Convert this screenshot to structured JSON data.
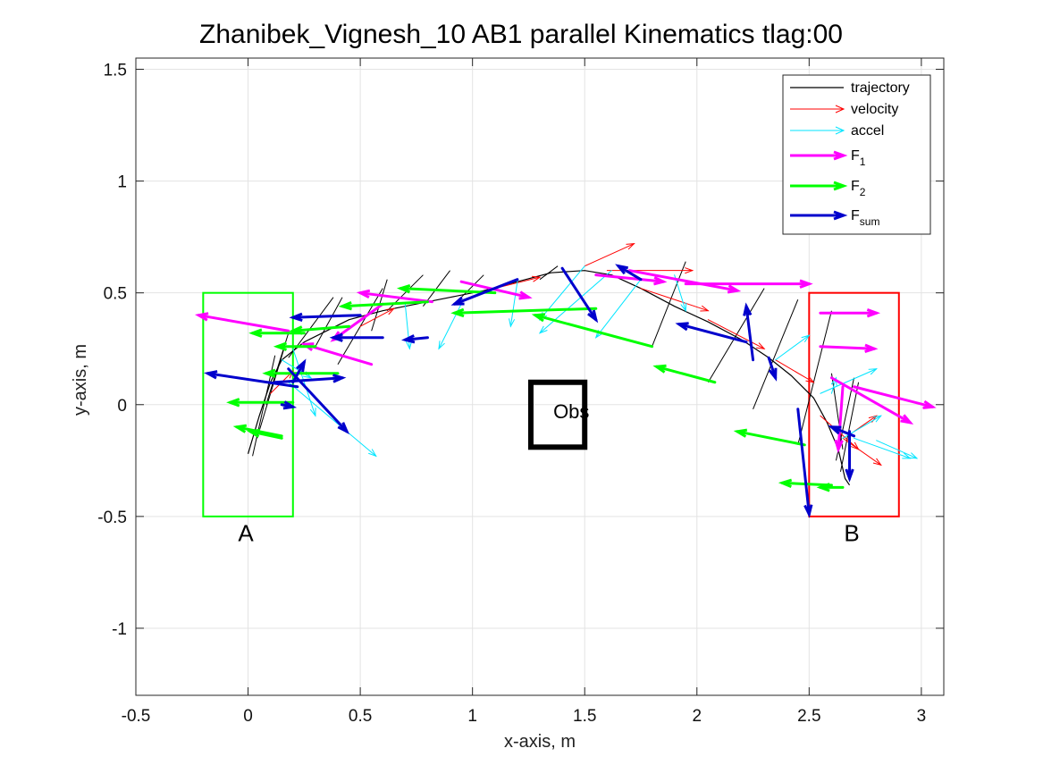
{
  "chart_data": {
    "type": "quiver",
    "title": "Zhanibek_Vignesh_10    AB1    parallel    Kinematics tlag:00",
    "xlabel": "x-axis, m",
    "ylabel": "y-axis, m",
    "xlim": [
      -0.5,
      3.1
    ],
    "ylim": [
      -1.3,
      1.55
    ],
    "xticks": [
      -0.5,
      0,
      0.5,
      1,
      1.5,
      2,
      2.5,
      3
    ],
    "yticks": [
      1.5,
      1,
      0.5,
      0,
      -0.5,
      -1
    ],
    "xticklabels": [
      "-0.5",
      "0",
      "0.5",
      "1",
      "1.5",
      "2",
      "2.5",
      "3"
    ],
    "yticklabels": [
      "1.5",
      "1",
      "0.5",
      "0",
      "-0.5",
      "-1"
    ],
    "grid": true,
    "legend_position": "top-right",
    "legend": [
      {
        "key": "trajectory",
        "label": "trajectory",
        "sub": "",
        "color": "#000000"
      },
      {
        "key": "velocity",
        "label": "velocity",
        "sub": "",
        "color": "#ff0000"
      },
      {
        "key": "accel",
        "label": "accel",
        "sub": "",
        "color": "#00e5ff"
      },
      {
        "key": "F1",
        "label": "F",
        "sub": "1",
        "color": "#ff00ff"
      },
      {
        "key": "F2",
        "label": "F",
        "sub": "2",
        "color": "#00ff00"
      },
      {
        "key": "Fsum",
        "label": "F",
        "sub": "sum",
        "color": "#0000cc"
      }
    ],
    "regions": [
      {
        "label": "A",
        "x0": -0.2,
        "x1": 0.2,
        "y0": -0.5,
        "y1": 0.5,
        "color": "#00ff00",
        "label_x": -0.01,
        "label_y": -0.61
      },
      {
        "label": "B",
        "x0": 2.5,
        "x1": 2.9,
        "y0": -0.5,
        "y1": 0.5,
        "color": "#ff0000",
        "label_x": 2.69,
        "label_y": -0.61
      }
    ],
    "obstacle": {
      "label": "Obs",
      "x0": 1.26,
      "x1": 1.5,
      "y0": -0.19,
      "y2": 0.1,
      "y1": 0.1,
      "color": "#000000",
      "label_x": 1.36,
      "label_y": -0.06
    },
    "series": [
      {
        "name": "trajectory",
        "type": "line",
        "points": [
          [
            0.0,
            -0.22
          ],
          [
            0.05,
            -0.05
          ],
          [
            0.1,
            0.1
          ],
          [
            0.15,
            0.2
          ],
          [
            0.25,
            0.28
          ],
          [
            0.35,
            0.33
          ],
          [
            0.45,
            0.38
          ],
          [
            0.6,
            0.42
          ],
          [
            0.75,
            0.45
          ],
          [
            0.9,
            0.48
          ],
          [
            1.05,
            0.51
          ],
          [
            1.2,
            0.55
          ],
          [
            1.35,
            0.59
          ],
          [
            1.5,
            0.6
          ],
          [
            1.62,
            0.58
          ],
          [
            1.75,
            0.52
          ],
          [
            1.9,
            0.44
          ],
          [
            2.05,
            0.37
          ],
          [
            2.2,
            0.29
          ],
          [
            2.32,
            0.21
          ],
          [
            2.42,
            0.13
          ],
          [
            2.52,
            0.03
          ],
          [
            2.58,
            -0.08
          ],
          [
            2.63,
            -0.2
          ],
          [
            2.66,
            -0.33
          ],
          [
            2.68,
            -0.36
          ]
        ]
      },
      {
        "name": "trajectory",
        "type": "segments",
        "segments": [
          [
            [
              0.02,
              -0.23
            ],
            [
              0.12,
              0.22
            ]
          ],
          [
            [
              0.04,
              -0.15
            ],
            [
              0.16,
              0.25
            ]
          ],
          [
            [
              0.08,
              0.0
            ],
            [
              0.18,
              0.32
            ]
          ],
          [
            [
              0.18,
              0.21
            ],
            [
              0.38,
              0.48
            ]
          ],
          [
            [
              0.3,
              0.26
            ],
            [
              0.42,
              0.48
            ]
          ],
          [
            [
              0.4,
              0.18
            ],
            [
              0.6,
              0.52
            ]
          ],
          [
            [
              0.55,
              0.33
            ],
            [
              0.62,
              0.56
            ]
          ],
          [
            [
              0.62,
              0.42
            ],
            [
              0.78,
              0.58
            ]
          ],
          [
            [
              0.78,
              0.44
            ],
            [
              0.9,
              0.6
            ]
          ],
          [
            [
              0.95,
              0.48
            ],
            [
              1.05,
              0.58
            ]
          ],
          [
            [
              1.3,
              0.56
            ],
            [
              1.38,
              0.62
            ]
          ],
          [
            [
              1.8,
              0.26
            ],
            [
              1.95,
              0.64
            ]
          ],
          [
            [
              2.05,
              0.1
            ],
            [
              2.3,
              0.52
            ]
          ],
          [
            [
              2.25,
              -0.02
            ],
            [
              2.45,
              0.47
            ]
          ],
          [
            [
              2.45,
              -0.18
            ],
            [
              2.6,
              0.42
            ]
          ],
          [
            [
              2.6,
              0.14
            ],
            [
              2.65,
              -0.2
            ]
          ],
          [
            [
              2.62,
              -0.25
            ],
            [
              2.7,
              0.12
            ]
          ],
          [
            [
              2.64,
              -0.3
            ],
            [
              2.72,
              0.1
            ]
          ]
        ]
      },
      {
        "name": "velocity",
        "type": "arrows",
        "vectors": [
          [
            [
              0.1,
              0.05
            ],
            [
              0.2,
              0.15
            ]
          ],
          [
            [
              0.5,
              0.35
            ],
            [
              0.65,
              0.43
            ]
          ],
          [
            [
              1.1,
              0.52
            ],
            [
              1.3,
              0.57
            ]
          ],
          [
            [
              1.5,
              0.62
            ],
            [
              1.72,
              0.72
            ]
          ],
          [
            [
              1.6,
              0.6
            ],
            [
              1.98,
              0.6
            ]
          ],
          [
            [
              1.75,
              0.52
            ],
            [
              2.05,
              0.42
            ]
          ],
          [
            [
              2.05,
              0.38
            ],
            [
              2.3,
              0.25
            ]
          ],
          [
            [
              2.35,
              0.2
            ],
            [
              2.52,
              0.1
            ]
          ],
          [
            [
              2.55,
              -0.05
            ],
            [
              2.72,
              -0.2
            ]
          ],
          [
            [
              2.65,
              -0.15
            ],
            [
              2.82,
              -0.27
            ]
          ],
          [
            [
              2.7,
              -0.12
            ],
            [
              2.8,
              -0.05
            ]
          ]
        ]
      },
      {
        "name": "accel",
        "type": "arrows",
        "vectors": [
          [
            [
              0.15,
              0.2
            ],
            [
              0.28,
              0.12
            ]
          ],
          [
            [
              0.2,
              0.25
            ],
            [
              0.3,
              -0.05
            ]
          ],
          [
            [
              0.18,
              0.1
            ],
            [
              0.57,
              -0.23
            ]
          ],
          [
            [
              0.7,
              0.45
            ],
            [
              0.72,
              0.25
            ]
          ],
          [
            [
              0.95,
              0.45
            ],
            [
              0.85,
              0.25
            ]
          ],
          [
            [
              1.2,
              0.55
            ],
            [
              1.17,
              0.35
            ]
          ],
          [
            [
              1.5,
              0.62
            ],
            [
              1.3,
              0.38
            ]
          ],
          [
            [
              1.62,
              0.6
            ],
            [
              1.3,
              0.32
            ]
          ],
          [
            [
              1.75,
              0.56
            ],
            [
              1.55,
              0.3
            ]
          ],
          [
            [
              1.9,
              0.58
            ],
            [
              1.95,
              0.42
            ]
          ],
          [
            [
              2.35,
              0.2
            ],
            [
              2.5,
              0.31
            ]
          ],
          [
            [
              2.55,
              0.05
            ],
            [
              2.8,
              0.16
            ]
          ],
          [
            [
              2.6,
              0.05
            ],
            [
              2.62,
              0.12
            ]
          ],
          [
            [
              2.7,
              -0.15
            ],
            [
              2.95,
              -0.24
            ]
          ],
          [
            [
              2.65,
              -0.15
            ],
            [
              2.82,
              -0.05
            ]
          ],
          [
            [
              2.8,
              -0.16
            ],
            [
              2.98,
              -0.24
            ]
          ]
        ]
      },
      {
        "name": "F1",
        "type": "arrows",
        "vectors": [
          [
            [
              0.18,
              0.33
            ],
            [
              -0.22,
              0.4
            ]
          ],
          [
            [
              0.6,
              0.45
            ],
            [
              0.38,
              0.29
            ]
          ],
          [
            [
              0.55,
              0.18
            ],
            [
              0.25,
              0.27
            ]
          ],
          [
            [
              0.82,
              0.46
            ],
            [
              0.5,
              0.5
            ]
          ],
          [
            [
              0.95,
              0.55
            ],
            [
              1.25,
              0.48
            ]
          ],
          [
            [
              1.55,
              0.58
            ],
            [
              1.85,
              0.55
            ]
          ],
          [
            [
              1.7,
              0.6
            ],
            [
              2.18,
              0.51
            ]
          ],
          [
            [
              1.95,
              0.54
            ],
            [
              2.5,
              0.54
            ]
          ],
          [
            [
              2.55,
              0.41
            ],
            [
              2.8,
              0.41
            ]
          ],
          [
            [
              2.55,
              0.26
            ],
            [
              2.79,
              0.25
            ]
          ],
          [
            [
              2.6,
              0.12
            ],
            [
              2.95,
              -0.08
            ]
          ],
          [
            [
              2.7,
              0.08
            ],
            [
              3.05,
              -0.01
            ]
          ],
          [
            [
              2.65,
              0.08
            ],
            [
              2.63,
              -0.2
            ]
          ]
        ]
      },
      {
        "name": "F2",
        "type": "arrows",
        "vectors": [
          [
            [
              0.4,
              0.14
            ],
            [
              0.08,
              0.14
            ]
          ],
          [
            [
              0.3,
              0.26
            ],
            [
              0.13,
              0.26
            ]
          ],
          [
            [
              0.25,
              0.32
            ],
            [
              0.02,
              0.32
            ]
          ],
          [
            [
              0.2,
              0.01
            ],
            [
              -0.08,
              0.01
            ]
          ],
          [
            [
              0.15,
              -0.14
            ],
            [
              -0.05,
              -0.1
            ]
          ],
          [
            [
              0.45,
              0.35
            ],
            [
              0.2,
              0.33
            ]
          ],
          [
            [
              0.8,
              0.46
            ],
            [
              0.42,
              0.44
            ]
          ],
          [
            [
              1.1,
              0.5
            ],
            [
              0.68,
              0.52
            ]
          ],
          [
            [
              1.55,
              0.43
            ],
            [
              0.92,
              0.41
            ]
          ],
          [
            [
              1.8,
              0.26
            ],
            [
              1.28,
              0.4
            ]
          ],
          [
            [
              2.08,
              0.1
            ],
            [
              1.82,
              0.17
            ]
          ],
          [
            [
              2.48,
              -0.18
            ],
            [
              2.18,
              -0.12
            ]
          ],
          [
            [
              2.6,
              -0.36
            ],
            [
              2.38,
              -0.35
            ]
          ],
          [
            [
              2.65,
              -0.37
            ],
            [
              2.55,
              -0.37
            ]
          ],
          [
            [
              0.15,
              -0.15
            ],
            [
              0.01,
              -0.12
            ]
          ]
        ]
      },
      {
        "name": "Fsum",
        "type": "arrows",
        "vectors": [
          [
            [
              0.5,
              0.4
            ],
            [
              0.2,
              0.39
            ]
          ],
          [
            [
              0.6,
              0.3
            ],
            [
              0.38,
              0.3
            ]
          ],
          [
            [
              0.12,
              0.1
            ],
            [
              0.42,
              0.12
            ]
          ],
          [
            [
              0.22,
              0.08
            ],
            [
              -0.18,
              0.14
            ]
          ],
          [
            [
              0.18,
              0.16
            ],
            [
              0.44,
              -0.12
            ]
          ],
          [
            [
              0.15,
              0.0
            ],
            [
              0.2,
              -0.01
            ]
          ],
          [
            [
              0.2,
              0.1
            ],
            [
              0.25,
              0.19
            ]
          ],
          [
            [
              0.8,
              0.3
            ],
            [
              0.7,
              0.29
            ]
          ],
          [
            [
              1.2,
              0.56
            ],
            [
              0.92,
              0.45
            ]
          ],
          [
            [
              1.4,
              0.61
            ],
            [
              1.55,
              0.38
            ]
          ],
          [
            [
              1.75,
              0.56
            ],
            [
              1.65,
              0.62
            ]
          ],
          [
            [
              2.22,
              0.28
            ],
            [
              1.92,
              0.36
            ]
          ],
          [
            [
              2.25,
              0.2
            ],
            [
              2.22,
              0.44
            ]
          ],
          [
            [
              2.32,
              0.21
            ],
            [
              2.35,
              0.12
            ]
          ],
          [
            [
              2.45,
              -0.02
            ],
            [
              2.5,
              -0.49
            ]
          ],
          [
            [
              2.68,
              -0.12
            ],
            [
              2.68,
              -0.33
            ]
          ],
          [
            [
              2.7,
              -0.14
            ],
            [
              2.6,
              -0.1
            ]
          ]
        ]
      }
    ]
  }
}
